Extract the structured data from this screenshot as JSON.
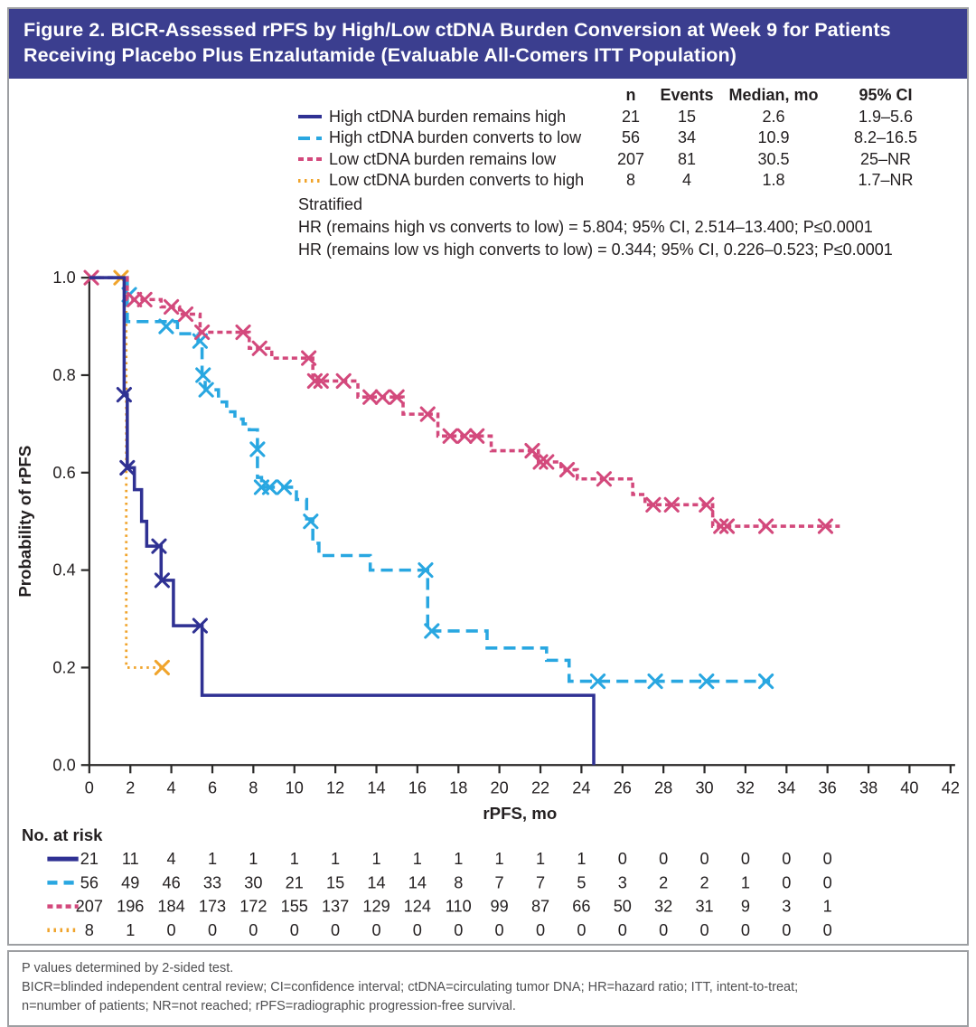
{
  "figure": {
    "title": "Figure 2. BICR-Assessed rPFS by High/Low ctDNA Burden Conversion at Week 9 for Patients Receiving Placebo Plus Enzalutamide (Evaluable All-Comers ITT Population)"
  },
  "legend": {
    "headers": {
      "n": "n",
      "events": "Events",
      "median": "Median, mo",
      "ci": "95% CI"
    },
    "rows": [
      {
        "label": "High ctDNA burden remains high",
        "n": "21",
        "events": "15",
        "median": "2.6",
        "ci": "1.9–5.6"
      },
      {
        "label": "High ctDNA burden converts to low",
        "n": "56",
        "events": "34",
        "median": "10.9",
        "ci": "8.2–16.5"
      },
      {
        "label": "Low ctDNA burden remains low",
        "n": "207",
        "events": "81",
        "median": "30.5",
        "ci": "25–NR"
      },
      {
        "label": "Low ctDNA burden converts to high",
        "n": "8",
        "events": "4",
        "median": "1.8",
        "ci": "1.7–NR"
      }
    ]
  },
  "stats": {
    "stratified_label": "Stratified",
    "hr_line1": "HR (remains high vs converts to low) = 5.804; 95% CI, 2.514–13.400; P≤0.0001",
    "hr_line2": "HR (remains low vs high converts to low) = 0.344; 95% CI, 0.226–0.523; P≤0.0001"
  },
  "at_risk_section": {
    "heading": "No. at risk"
  },
  "footnotes": {
    "line1": "P values determined by 2-sided test.",
    "line2": "BICR=blinded independent central review; CI=confidence interval; ctDNA=circulating tumor DNA; HR=hazard ratio; ITT, intent-to-treat;",
    "line3": "n=number of patients; NR=not reached; rPFS=radiographic progression-free survival."
  },
  "colors": {
    "header_bg": "#3b3e8f",
    "border": "#9d9fa2",
    "axis": "#2b2a29",
    "text": "#231f20"
  },
  "chart_data": {
    "type": "line",
    "subtype": "kaplan-meier-step",
    "xlabel": "rPFS, mo",
    "ylabel": "Probability of rPFS",
    "xlim": [
      0,
      42
    ],
    "ylim": [
      0.0,
      1.0
    ],
    "x_ticks": [
      0,
      2,
      4,
      6,
      8,
      10,
      12,
      14,
      16,
      18,
      20,
      22,
      24,
      26,
      28,
      30,
      32,
      34,
      36,
      38,
      40,
      42
    ],
    "y_ticks": [
      0.0,
      0.2,
      0.4,
      0.6,
      0.8,
      1.0
    ],
    "grid": false,
    "legend_position": "top-table",
    "series": [
      {
        "key": "converts-to-high",
        "name": "Low ctDNA burden converts to high",
        "color": "#f0a42c",
        "dash": "2.5,4.5",
        "line_width": 2.8,
        "points": [
          [
            0,
            1.0
          ],
          [
            1.8,
            0.2
          ]
        ],
        "end": 3.6,
        "censors": [
          [
            1.55,
            1.0
          ],
          [
            3.55,
            0.2
          ]
        ]
      },
      {
        "key": "converts-to-low",
        "name": "High ctDNA burden converts to low",
        "color": "#29a7e1",
        "dash": "13,7",
        "line_width": 3.5,
        "points": [
          [
            0,
            1.0
          ],
          [
            1.85,
            0.91
          ],
          [
            4.3,
            0.885
          ],
          [
            5.3,
            0.87
          ],
          [
            5.5,
            0.79
          ],
          [
            5.65,
            0.77
          ],
          [
            6.3,
            0.745
          ],
          [
            6.7,
            0.725
          ],
          [
            7.1,
            0.71
          ],
          [
            7.5,
            0.7
          ],
          [
            7.8,
            0.688
          ],
          [
            8.2,
            0.59
          ],
          [
            8.4,
            0.57
          ],
          [
            10.1,
            0.545
          ],
          [
            10.6,
            0.505
          ],
          [
            10.9,
            0.455
          ],
          [
            11.2,
            0.43
          ],
          [
            13.7,
            0.4
          ],
          [
            16.5,
            0.275
          ],
          [
            19.4,
            0.24
          ],
          [
            22.3,
            0.215
          ],
          [
            23.4,
            0.172
          ]
        ],
        "end": 33.2,
        "censors": [
          [
            1.95,
            0.965
          ],
          [
            3.75,
            0.9
          ],
          [
            5.4,
            0.87
          ],
          [
            5.55,
            0.8
          ],
          [
            5.7,
            0.77
          ],
          [
            8.2,
            0.648
          ],
          [
            8.4,
            0.57
          ],
          [
            8.8,
            0.57
          ],
          [
            9.5,
            0.57
          ],
          [
            10.8,
            0.5
          ],
          [
            16.4,
            0.4
          ],
          [
            16.7,
            0.275
          ],
          [
            24.8,
            0.172
          ],
          [
            27.6,
            0.172
          ],
          [
            30.1,
            0.172
          ],
          [
            33.0,
            0.172
          ]
        ]
      },
      {
        "key": "remains-low",
        "name": "Low ctDNA burden remains low",
        "color": "#d3497c",
        "dash": "6,4",
        "line_width": 3.5,
        "points": [
          [
            0,
            1.0
          ],
          [
            1.85,
            0.955
          ],
          [
            3.5,
            0.94
          ],
          [
            4.4,
            0.925
          ],
          [
            5.4,
            0.888
          ],
          [
            7.8,
            0.855
          ],
          [
            8.9,
            0.835
          ],
          [
            10.9,
            0.788
          ],
          [
            13.1,
            0.755
          ],
          [
            15.3,
            0.72
          ],
          [
            17.0,
            0.675
          ],
          [
            19.6,
            0.645
          ],
          [
            21.9,
            0.622
          ],
          [
            23.0,
            0.606
          ],
          [
            23.8,
            0.587
          ],
          [
            26.5,
            0.555
          ],
          [
            27.1,
            0.534
          ],
          [
            30.4,
            0.49
          ]
        ],
        "end": 36.6,
        "censors": [
          [
            0.1,
            1.0
          ],
          [
            2.2,
            0.955
          ],
          [
            2.7,
            0.955
          ],
          [
            4.0,
            0.94
          ],
          [
            4.7,
            0.925
          ],
          [
            5.5,
            0.888
          ],
          [
            7.5,
            0.888
          ],
          [
            8.3,
            0.855
          ],
          [
            10.7,
            0.835
          ],
          [
            11.0,
            0.788
          ],
          [
            11.3,
            0.788
          ],
          [
            12.4,
            0.788
          ],
          [
            13.7,
            0.755
          ],
          [
            14.3,
            0.755
          ],
          [
            15.0,
            0.755
          ],
          [
            16.5,
            0.72
          ],
          [
            17.6,
            0.675
          ],
          [
            18.3,
            0.675
          ],
          [
            18.9,
            0.675
          ],
          [
            21.6,
            0.645
          ],
          [
            22.0,
            0.622
          ],
          [
            22.3,
            0.622
          ],
          [
            23.3,
            0.606
          ],
          [
            25.1,
            0.587
          ],
          [
            27.5,
            0.534
          ],
          [
            28.4,
            0.534
          ],
          [
            30.1,
            0.534
          ],
          [
            30.8,
            0.49
          ],
          [
            31.1,
            0.49
          ],
          [
            33.0,
            0.49
          ],
          [
            35.9,
            0.49
          ]
        ]
      },
      {
        "key": "remains-high",
        "name": "High ctDNA burden remains high",
        "color": "#2f3193",
        "dash": "",
        "line_width": 3.5,
        "points": [
          [
            0,
            1.0
          ],
          [
            1.7,
            0.76
          ],
          [
            1.85,
            0.61
          ],
          [
            2.2,
            0.565
          ],
          [
            2.55,
            0.5
          ],
          [
            2.8,
            0.449
          ],
          [
            3.5,
            0.379
          ],
          [
            4.1,
            0.286
          ],
          [
            5.5,
            0.143
          ],
          [
            24.6,
            0.0
          ]
        ],
        "end": 24.6,
        "censors": [
          [
            1.7,
            0.76
          ],
          [
            1.85,
            0.61
          ],
          [
            3.4,
            0.449
          ],
          [
            3.55,
            0.379
          ],
          [
            5.4,
            0.286
          ]
        ]
      }
    ],
    "at_risk": {
      "ticks": [
        0,
        2,
        4,
        6,
        8,
        10,
        12,
        14,
        16,
        18,
        20,
        22,
        24,
        26,
        28,
        30,
        32,
        34,
        36
      ],
      "rows": [
        {
          "key": "remains-high",
          "values": [
            21,
            11,
            4,
            1,
            1,
            1,
            1,
            1,
            1,
            1,
            1,
            1,
            1,
            0,
            0,
            0,
            0,
            0,
            0
          ]
        },
        {
          "key": "converts-to-low",
          "values": [
            56,
            49,
            46,
            33,
            30,
            21,
            15,
            14,
            14,
            8,
            7,
            7,
            5,
            3,
            2,
            2,
            1,
            0,
            0
          ]
        },
        {
          "key": "remains-low",
          "values": [
            207,
            196,
            184,
            173,
            172,
            155,
            137,
            129,
            124,
            110,
            99,
            87,
            66,
            50,
            32,
            31,
            9,
            3,
            1
          ]
        },
        {
          "key": "converts-to-high",
          "values": [
            8,
            1,
            0,
            0,
            0,
            0,
            0,
            0,
            0,
            0,
            0,
            0,
            0,
            0,
            0,
            0,
            0,
            0,
            0
          ]
        }
      ],
      "risk_dash": {
        "remains-high": "",
        "converts-to-low": "11,7",
        "remains-low": "6,4",
        "converts-to-high": "2.5,4.5"
      }
    }
  }
}
